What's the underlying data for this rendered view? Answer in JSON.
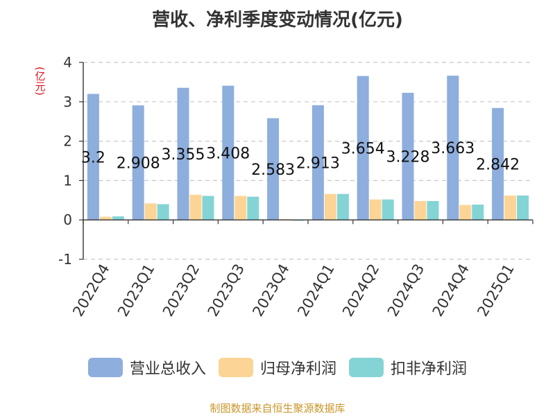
{
  "chart_data": {
    "type": "bar",
    "title": "营收、净利季度变动情况(亿元)",
    "ylabel": "(亿元)",
    "ylim": [
      -1,
      4
    ],
    "yticks": [
      4,
      3,
      2,
      1,
      0,
      -1
    ],
    "grid": true,
    "legend_position": "bottom",
    "categories": [
      "2022Q4",
      "2023Q1",
      "2023Q2",
      "2023Q3",
      "2023Q4",
      "2024Q1",
      "2024Q2",
      "2024Q3",
      "2024Q4",
      "2025Q1"
    ],
    "series": [
      {
        "name": "营业总收入",
        "color": "#8eaedd",
        "values": [
          3.2,
          2.908,
          3.355,
          3.408,
          2.583,
          2.913,
          3.654,
          3.228,
          3.663,
          2.842
        ],
        "data_labels": [
          "3.2",
          "2.908",
          "3.355",
          "3.408",
          "2.583",
          "2.913",
          "3.654",
          "3.228",
          "3.663",
          "2.842"
        ]
      },
      {
        "name": "归母净利润",
        "color": "#fcd596",
        "values": [
          0.08,
          0.42,
          0.64,
          0.61,
          0.02,
          0.66,
          0.52,
          0.48,
          0.38,
          0.62
        ]
      },
      {
        "name": "扣非净利润",
        "color": "#84d4d6",
        "values": [
          0.09,
          0.4,
          0.61,
          0.59,
          -0.02,
          0.66,
          0.52,
          0.48,
          0.39,
          0.62
        ]
      }
    ]
  },
  "footer": {
    "source": "制图数据来自恒生聚源数据库"
  }
}
